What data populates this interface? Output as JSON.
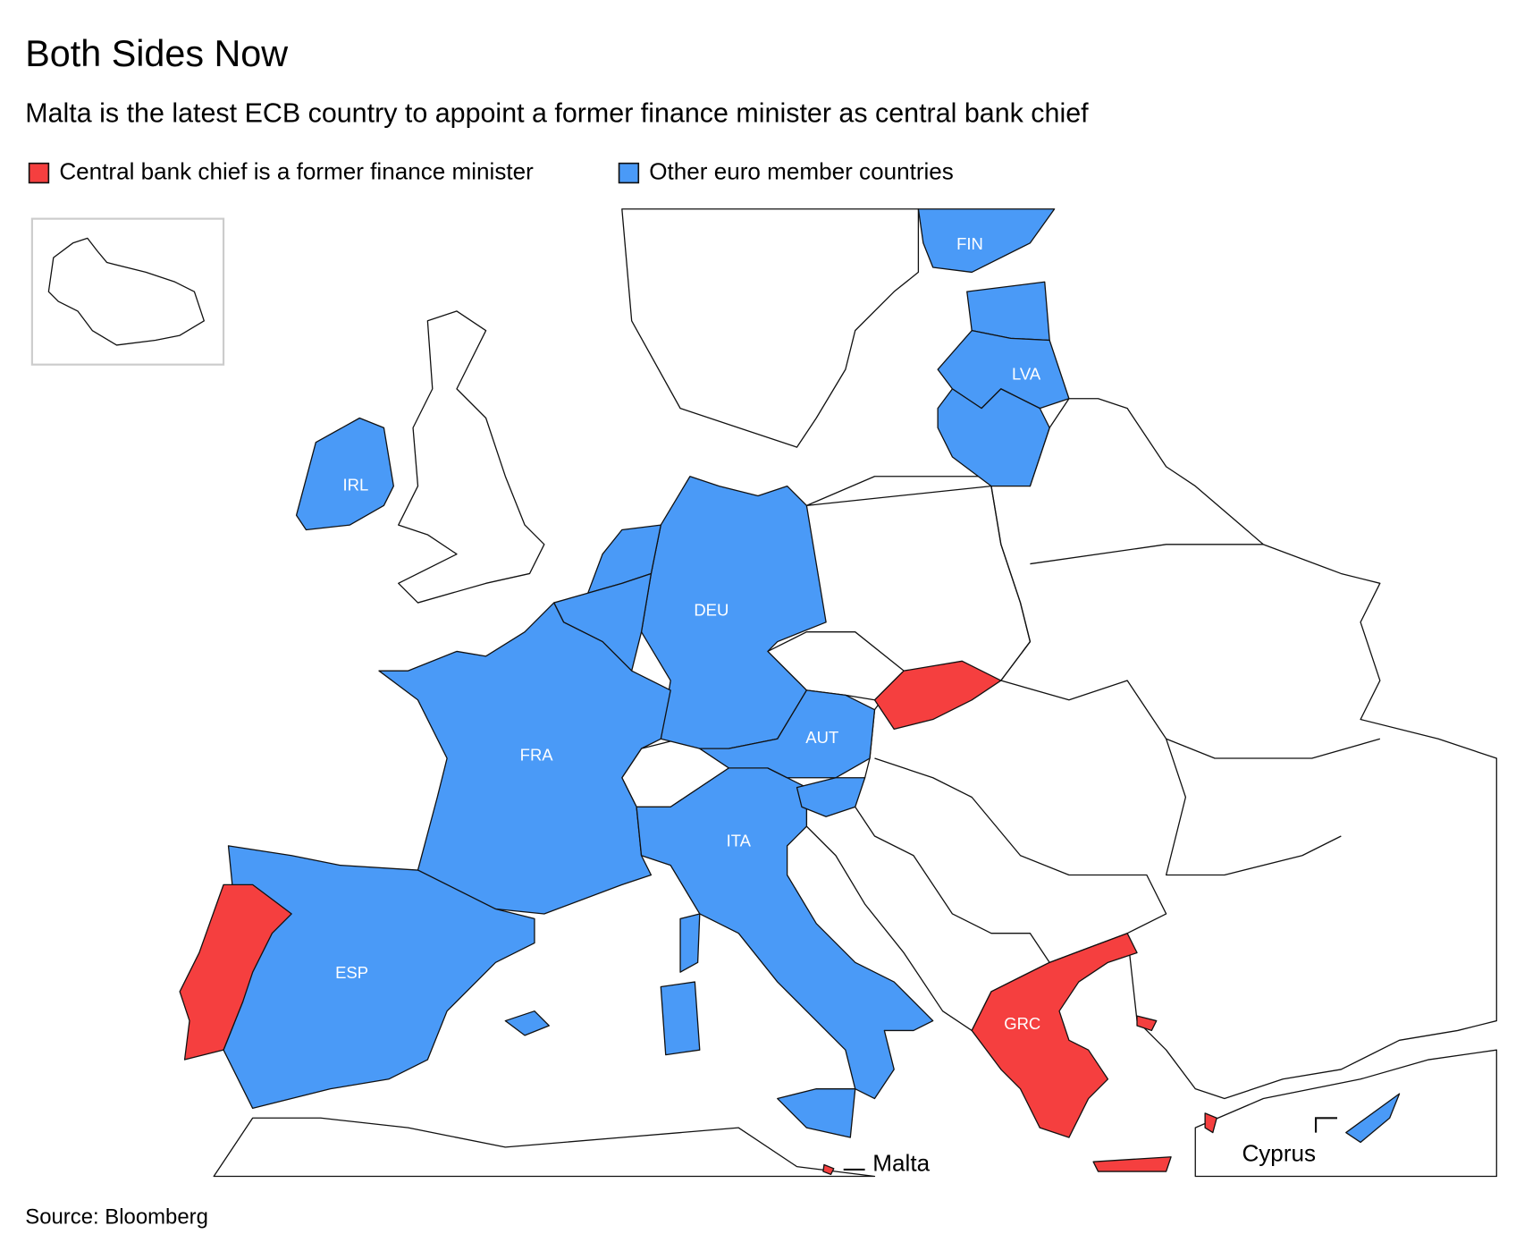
{
  "title": "Both Sides Now",
  "subtitle": "Malta is the latest ECB country to appoint a former finance minister as central bank chief",
  "legend": [
    {
      "label": "Central bank chief is a former finance minister",
      "color": "#f53f3f"
    },
    {
      "label": "Other euro member countries",
      "color": "#4a9af7"
    }
  ],
  "map": {
    "labels": [
      "FIN",
      "LVA",
      "IRL",
      "DEU",
      "FRA",
      "AUT",
      "ITA",
      "ESP",
      "GRC"
    ],
    "callouts": [
      "Malta",
      "Cyprus"
    ]
  },
  "source": "Source: Bloomberg"
}
